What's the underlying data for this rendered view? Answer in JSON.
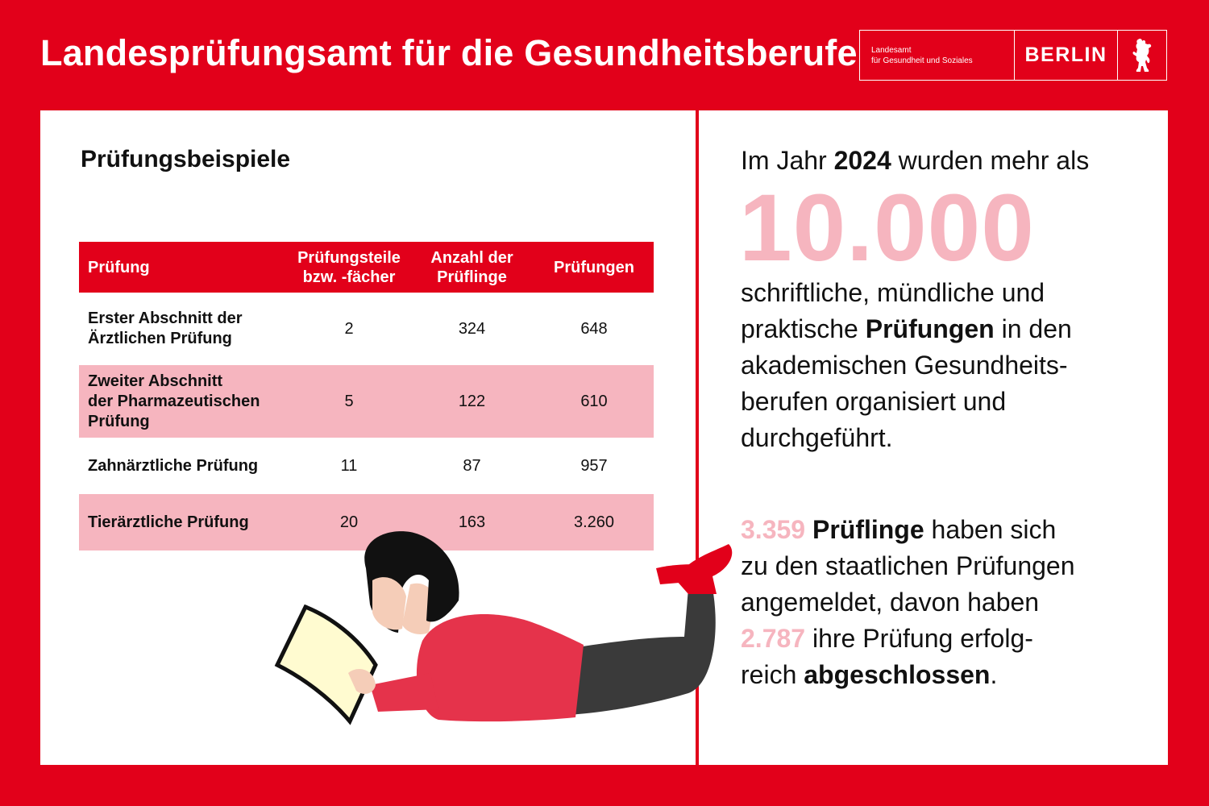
{
  "header": {
    "title": "Landesprüfungsamt für die Gesundheitsberufe",
    "logo": {
      "org_line1": "Landesamt",
      "org_line2": "für Gesundheit und Soziales",
      "city": "BERLIN",
      "emblem_icon": "berlin-bear-icon"
    }
  },
  "left": {
    "heading": "Prüfungsbeispiele",
    "table": {
      "headers": {
        "pruefung": "Prüfung",
        "teile_line1": "Prüfungsteile",
        "teile_line2": "bzw. -fächer",
        "anzahl_line1": "Anzahl der",
        "anzahl_line2": "Prüflinge",
        "pruefungen": "Prüfungen"
      },
      "rows": [
        {
          "name_line1": "Erster Abschnitt der",
          "name_line2": "Ärztlichen Prüfung",
          "name_line3": "",
          "teile": "2",
          "prueflinge": "324",
          "pruefungen": "648"
        },
        {
          "name_line1": "Zweiter Abschnitt",
          "name_line2": "der Pharmazeutischen",
          "name_line3": "Prüfung",
          "teile": "5",
          "prueflinge": "122",
          "pruefungen": "610"
        },
        {
          "name_line1": "Zahnärztliche Prüfung",
          "name_line2": "",
          "name_line3": "",
          "teile": "11",
          "prueflinge": "87",
          "pruefungen": "957"
        },
        {
          "name_line1": "Tierärztliche Prüfung",
          "name_line2": "",
          "name_line3": "",
          "teile": "20",
          "prueflinge": "163",
          "pruefungen": "3.260"
        }
      ]
    },
    "illustration_icon": "person-reading-book-icon"
  },
  "right": {
    "intro_pre": "Im Jahr ",
    "intro_year": "2024",
    "intro_post": " wurden mehr als",
    "big_number": "10.000",
    "p1_line1": "schriftliche, mündliche und",
    "p1_line2_pre": "praktische ",
    "p1_line2_bold": "Prüfungen",
    "p1_line2_post": " in den",
    "p1_line3": "akademischen Gesundheits-",
    "p1_line4": "berufen organisiert und",
    "p1_line5": "durchgeführt.",
    "p2_num1": "3.359",
    "p2_bold1": " Prüflinge",
    "p2_line1_post": " haben sich",
    "p2_line2": "zu den staatlichen Prüfungen",
    "p2_line3": "angemeldet, davon haben",
    "p2_num2": "2.787",
    "p2_line4_post": " ihre Prüfung erfolg-",
    "p2_line5_pre": "reich ",
    "p2_line5_bold": "abgeschlossen",
    "p2_line5_post": "."
  },
  "colors": {
    "brand_red": "#e2001a",
    "accent_pink": "#f6b5bf",
    "text": "#111111"
  }
}
